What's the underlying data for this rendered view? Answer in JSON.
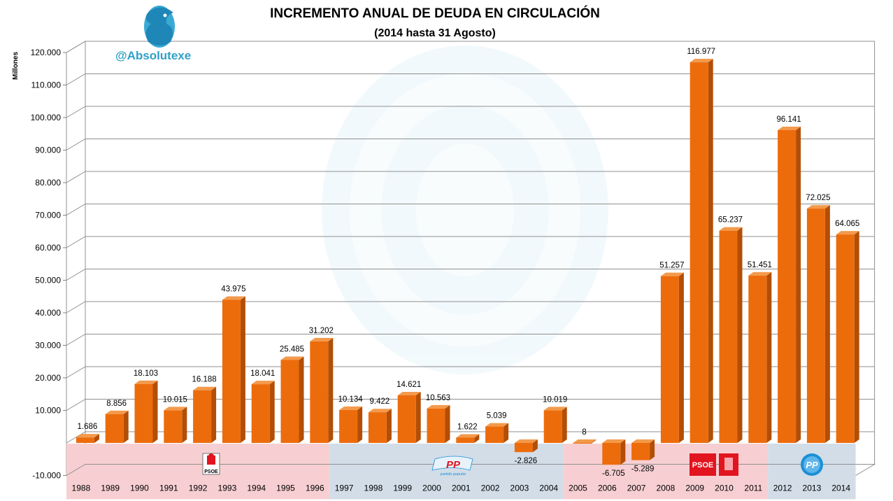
{
  "header": {
    "title": "INCREMENTO ANUAL DE DEUDA EN CIRCULACIÓN",
    "subtitle": "(2014 hasta  31 Agosto)",
    "handle": "@Absolutexe"
  },
  "party_logos": {
    "psoe_1": "PSOE",
    "pp_1": "PP",
    "pp_1_tagline": "partido popular",
    "psoe_2": "PSOE",
    "pp_2": "PP"
  },
  "colors": {
    "bar_front": "#ec6c0c",
    "bar_side": "#b34e06",
    "bar_top": "#f39a4c",
    "psoe_band": "#f7cfd2",
    "pp_band": "#d2dde8",
    "psoe_red": "#e2141f",
    "pp_blue": "#1b8fd6"
  },
  "chart_data": {
    "type": "bar",
    "title": "INCREMENTO ANUAL DE DEUDA EN CIRCULACIÓN",
    "subtitle": "(2014 hasta  31 Agosto)",
    "ylabel": "Millones",
    "xlabel": "",
    "ylim": [
      -10000,
      120000
    ],
    "yticks": [
      -10000,
      10000,
      20000,
      30000,
      40000,
      50000,
      60000,
      70000,
      80000,
      90000,
      100000,
      110000,
      120000
    ],
    "ytick_labels": [
      "-10.000",
      "10.000",
      "20.000",
      "30.000",
      "40.000",
      "50.000",
      "60.000",
      "70.000",
      "80.000",
      "90.000",
      "100.000",
      "110.000",
      "120.000"
    ],
    "grid": true,
    "categories": [
      "1988",
      "1989",
      "1990",
      "1991",
      "1992",
      "1993",
      "1994",
      "1995",
      "1996",
      "1997",
      "1998",
      "1999",
      "2000",
      "2001",
      "2002",
      "2003",
      "2004",
      "2005",
      "2006",
      "2007",
      "2008",
      "2009",
      "2010",
      "2011",
      "2012",
      "2013",
      "2014"
    ],
    "values": [
      1686,
      8856,
      18103,
      10015,
      16188,
      43975,
      18041,
      25485,
      31202,
      10134,
      9422,
      14621,
      10563,
      1622,
      5039,
      -2826,
      10019,
      8,
      -6705,
      -5289,
      51257,
      116977,
      65237,
      51451,
      96141,
      72025,
      64065
    ],
    "value_labels": [
      "1.686",
      "8.856",
      "18.103",
      "10.015",
      "16.188",
      "43.975",
      "18.041",
      "25.485",
      "31.202",
      "10.134",
      "9.422",
      "14.621",
      "10.563",
      "1.622",
      "5.039",
      "-2.826",
      "10.019",
      "8",
      "-6.705",
      "-5.289",
      "51.257",
      "116.977",
      "65.237",
      "51.451",
      "96.141",
      "72.025",
      "64.065"
    ],
    "government_periods": [
      {
        "party": "PSOE",
        "from": "1988",
        "to": "1996"
      },
      {
        "party": "PP",
        "from": "1997",
        "to": "2004"
      },
      {
        "party": "PSOE",
        "from": "2005",
        "to": "2011"
      },
      {
        "party": "PP",
        "from": "2012",
        "to": "2014"
      }
    ]
  }
}
